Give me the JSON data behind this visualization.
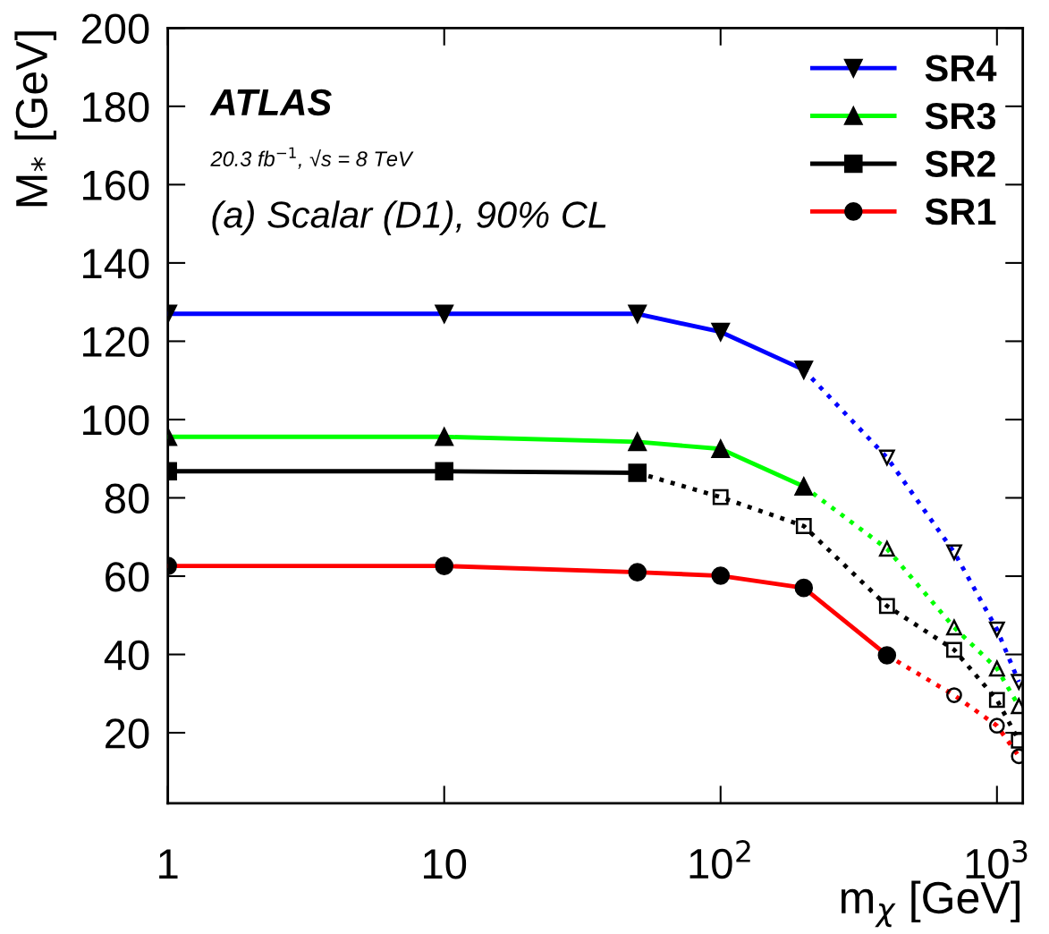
{
  "chart_data": {
    "type": "line",
    "xlabel": "m$_{χ}$ [GeV]",
    "ylabel": "M$_{*}$ [GeV]",
    "annotations": [
      "ATLAS",
      "20.3 fb$^{−1}$, √s = 8 TeV",
      "(a) Scalar (D1), 90% CL"
    ],
    "log": "x",
    "xlim": [
      1,
      1240
    ],
    "ylim": [
      2,
      200
    ],
    "xticks": [
      1,
      10,
      {
        "value": 100,
        "label": "10$^{2}$"
      },
      {
        "value": 1000,
        "label": "10$^{3}$"
      }
    ],
    "yticks": [
      20,
      40,
      60,
      80,
      100,
      120,
      140,
      160,
      180,
      200
    ],
    "grid": false,
    "legend": "top right",
    "series": [
      {
        "name": "SR4",
        "color": "#0000ff",
        "marker": "triangle_down",
        "line_style": "solid",
        "x": [
          1,
          10,
          50,
          100,
          200
        ],
        "values": [
          127,
          127,
          127,
          122.4,
          112.7
        ]
      },
      {
        "name": "SR3",
        "color": "#00ff00",
        "marker": "triangle",
        "line_style": "solid",
        "x": [
          1,
          10,
          50,
          100,
          200
        ],
        "values": [
          95.6,
          95.6,
          94.3,
          92.5,
          82.9
        ]
      },
      {
        "name": "SR2",
        "color": "#000000",
        "marker": "square",
        "line_style": "solid",
        "x": [
          1,
          10,
          50
        ],
        "values": [
          86.8,
          86.8,
          86.4
        ]
      },
      {
        "name": "SR1",
        "color": "#ff0000",
        "marker": "circle",
        "line_style": "solid",
        "x": [
          1,
          10,
          50,
          100,
          200,
          400
        ],
        "values": [
          62.6,
          62.6,
          61,
          60.1,
          57,
          39.8
        ]
      },
      {
        "color": "#0000ff",
        "marker": "triangle_down",
        "line_style": "dotted",
        "x": [
          200,
          400,
          700,
          1000,
          1200
        ],
        "values": [
          112.7,
          90.3,
          66.1,
          46.4,
          33
        ]
      },
      {
        "color": "#00ff00",
        "marker": "triangle",
        "line_style": "dotted",
        "x": [
          200,
          400,
          700,
          1000,
          1200
        ],
        "values": [
          82.9,
          67,
          46.9,
          36.4,
          26.8
        ]
      },
      {
        "color": "#000000",
        "marker": "square",
        "line_style": "dotted",
        "x": [
          50,
          100,
          200,
          400,
          700,
          1000,
          1200
        ],
        "values": [
          86.4,
          80.2,
          72.8,
          52.4,
          41.2,
          28.4,
          18
        ]
      },
      {
        "color": "#ff0000",
        "marker": "circle",
        "line_style": "dotted",
        "x": [
          400,
          700,
          1000,
          1200
        ],
        "values": [
          39.8,
          29.6,
          21.8,
          14
        ]
      }
    ]
  }
}
